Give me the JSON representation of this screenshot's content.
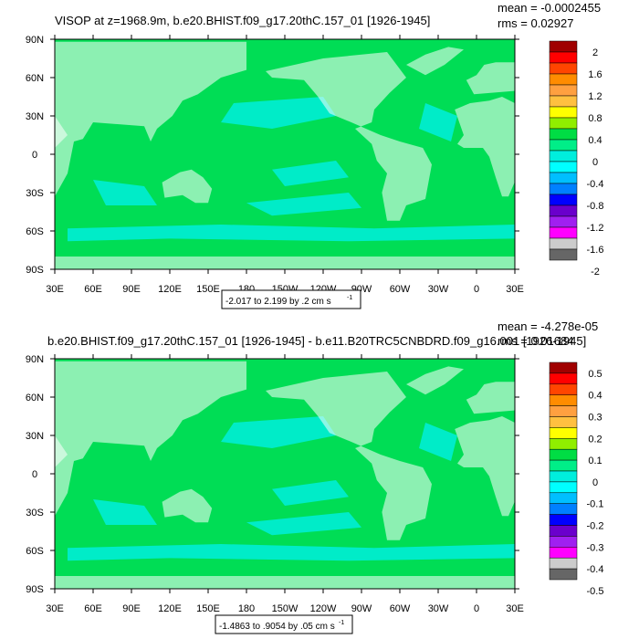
{
  "chart_data": [
    {
      "type": "heatmap",
      "title": "VISOP at z=1968.9m, b.e20.BHIST.f09_g17.20thC.157_01 [1926-1945]",
      "stats": {
        "mean": "mean = -0.0002455",
        "rms": "rms = 0.02927"
      },
      "xticks": [
        "30E",
        "60E",
        "90E",
        "120E",
        "150E",
        "180",
        "150W",
        "120W",
        "90W",
        "60W",
        "30W",
        "0",
        "30E"
      ],
      "yticks": [
        "90N",
        "60N",
        "30N",
        "0",
        "30S",
        "60S",
        "90S"
      ],
      "xrange": [
        30,
        390
      ],
      "yrange": [
        -90,
        90
      ],
      "colorbar_labels": [
        "2",
        "1.6",
        "1.2",
        "0.8",
        "0.4",
        "0",
        "-0.4",
        "-0.8",
        "-1.2",
        "-1.6",
        "-2"
      ],
      "colorbar_colors": [
        "#a00000",
        "#ff0000",
        "#ff4500",
        "#ff8c00",
        "#ffa040",
        "#ffc040",
        "#ffff00",
        "#90ee00",
        "#00dd44",
        "#00ee88",
        "#00eedd",
        "#00ffff",
        "#00bfff",
        "#0080ff",
        "#0000ff",
        "#6a00cc",
        "#a020f0",
        "#ff00ff",
        "#cccccc",
        "#666666"
      ],
      "range_note": "-2.017 to 2.199 by .2 cm s",
      "range_sup": "-1"
    },
    {
      "type": "heatmap",
      "title": "b.e20.BHIST.f09_g17.20thC.157_01 [1926-1945] - b.e11.B20TRC5CNBDRD.f09_g16.001 [1926-1945]",
      "stats": {
        "mean": "mean = -4.278e-05",
        "rms": "rms = 0.01684"
      },
      "xticks": [
        "30E",
        "60E",
        "90E",
        "120E",
        "150E",
        "180",
        "150W",
        "120W",
        "90W",
        "60W",
        "30W",
        "0",
        "30E"
      ],
      "yticks": [
        "90N",
        "60N",
        "30N",
        "0",
        "30S",
        "60S",
        "90S"
      ],
      "xrange": [
        30,
        390
      ],
      "yrange": [
        -90,
        90
      ],
      "colorbar_labels": [
        "0.5",
        "0.4",
        "0.3",
        "0.2",
        "0.1",
        "0",
        "-0.1",
        "-0.2",
        "-0.3",
        "-0.4",
        "-0.5"
      ],
      "colorbar_colors": [
        "#a00000",
        "#ff0000",
        "#ff4500",
        "#ff8c00",
        "#ffa040",
        "#ffc040",
        "#ffff00",
        "#90ee00",
        "#00dd44",
        "#00ee88",
        "#00eedd",
        "#00ffff",
        "#00bfff",
        "#0080ff",
        "#0000ff",
        "#6a00cc",
        "#a020f0",
        "#ff00ff",
        "#cccccc",
        "#666666"
      ],
      "range_note": "-1.4863 to .9054 by .05 cm s",
      "range_sup": "-1"
    }
  ],
  "colors": {
    "zero_band": "#00dd55",
    "light_band": "#00eedd",
    "land_mask": "#ffffff"
  }
}
